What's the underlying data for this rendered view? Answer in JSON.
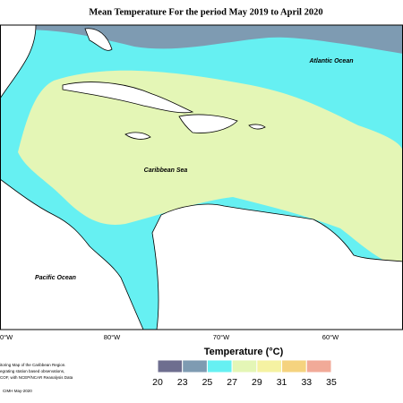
{
  "title": "Mean Temperature For the period May 2019 to April 2020",
  "map": {
    "labels": [
      "Atlantic Ocean",
      "Caribbean Sea",
      "Pacific Ocean"
    ],
    "longitudes": [
      "0°W",
      "80°W",
      "70°W",
      "60°W"
    ]
  },
  "legend": {
    "title": "Temperature (°C)",
    "ticks": [
      20,
      23,
      25,
      27,
      29,
      31,
      33,
      35
    ],
    "colors": [
      "#6e6e8f",
      "#7e9bb2",
      "#66f0f2",
      "#e4f6b6",
      "#f5f2a2",
      "#f5d37f",
      "#f1aa98"
    ]
  },
  "footnote": {
    "lines": [
      "itoring Map of the Caribbean Region.",
      "egrating station based observations,",
      "COF, with NCEP/NCAR Reanalysis Data"
    ],
    "credit": "CIMH May-2020"
  }
}
